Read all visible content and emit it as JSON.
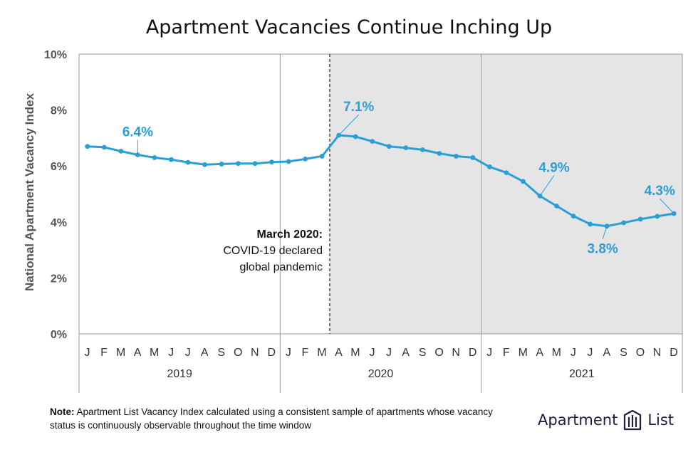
{
  "chart_data": {
    "type": "line",
    "title": "Apartment Vacancies Continue Inching Up",
    "ylabel": "National Apartment Vacancy Index",
    "ylim": [
      0,
      10
    ],
    "yticks": [
      "0%",
      "2%",
      "4%",
      "6%",
      "8%",
      "10%"
    ],
    "ytick_values": [
      0,
      2,
      4,
      6,
      8,
      10
    ],
    "months": [
      "J",
      "F",
      "M",
      "A",
      "M",
      "J",
      "J",
      "A",
      "S",
      "O",
      "N",
      "D",
      "J",
      "F",
      "M",
      "A",
      "M",
      "J",
      "J",
      "A",
      "S",
      "O",
      "N",
      "D",
      "J",
      "F",
      "M",
      "A",
      "M",
      "J",
      "J",
      "A",
      "S",
      "O",
      "N",
      "D"
    ],
    "years": [
      "2019",
      "2020",
      "2021"
    ],
    "series": [
      {
        "color": "#2a9fd6",
        "values": [
          6.7,
          6.67,
          6.53,
          6.4,
          6.3,
          6.23,
          6.13,
          6.05,
          6.07,
          6.09,
          6.09,
          6.14,
          6.16,
          6.25,
          6.35,
          7.1,
          7.05,
          6.88,
          6.7,
          6.65,
          6.58,
          6.45,
          6.35,
          6.3,
          5.97,
          5.76,
          5.45,
          4.93,
          4.57,
          4.21,
          3.92,
          3.85,
          3.97,
          4.1,
          4.2,
          4.3
        ]
      }
    ],
    "data_labels": [
      {
        "index": 3,
        "text": "6.4%"
      },
      {
        "index": 15,
        "text": "7.1%"
      },
      {
        "index": 27,
        "text": "4.9%"
      },
      {
        "index": 31,
        "text": "3.8%"
      },
      {
        "index": 35,
        "text": "4.3%"
      }
    ],
    "shaded_from_index": 15,
    "annotation": {
      "bold": "March 2020:",
      "line1": "COVID-19 declared",
      "line2": "global pandemic"
    },
    "grid": false,
    "shade_color": "#e5e5e5"
  },
  "footer": {
    "note_label": "Note:",
    "note_text": "Apartment List Vacancy Index calculated using a consistent sample of apartments whose vacancy status is continuously observable throughout the time window"
  },
  "logo": {
    "word1": "Apartment",
    "word2": "List",
    "icon": "apartment-list-logo-icon"
  }
}
